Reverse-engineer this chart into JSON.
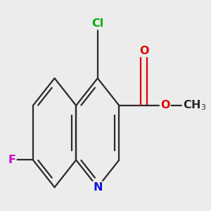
{
  "background_color": "#ececec",
  "bond_color": "#2a2a2a",
  "atom_colors": {
    "N": "#1010dd",
    "O": "#dd0000",
    "F": "#cc00cc",
    "Cl": "#00aa00"
  },
  "bond_lw": 1.6,
  "font_size": 11.5
}
